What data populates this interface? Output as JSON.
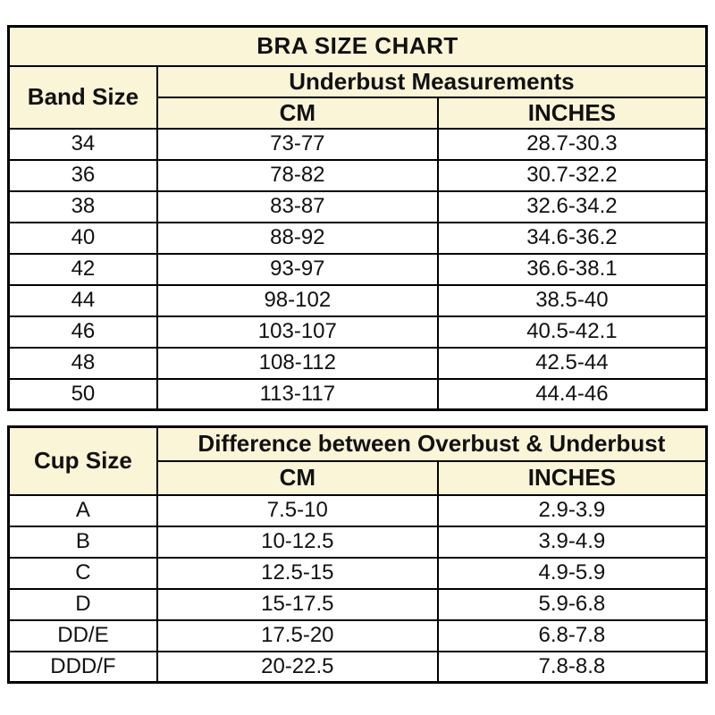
{
  "colors": {
    "page_bg": "#ffffff",
    "header_bg": "#FAF5D7",
    "border": "#000000",
    "text": "#111111"
  },
  "chart_data": [
    {
      "type": "table",
      "title": "BRA SIZE CHART",
      "row_header": "Band Size",
      "group_header": "Underbust Measurements",
      "subcolumns": [
        "CM",
        "INCHES"
      ],
      "rows": [
        [
          "34",
          "73-77",
          "28.7-30.3"
        ],
        [
          "36",
          "78-82",
          "30.7-32.2"
        ],
        [
          "38",
          "83-87",
          "32.6-34.2"
        ],
        [
          "40",
          "88-92",
          "34.6-36.2"
        ],
        [
          "42",
          "93-97",
          "36.6-38.1"
        ],
        [
          "44",
          "98-102",
          "38.5-40"
        ],
        [
          "46",
          "103-107",
          "40.5-42.1"
        ],
        [
          "48",
          "108-112",
          "42.5-44"
        ],
        [
          "50",
          "113-117",
          "44.4-46"
        ]
      ]
    },
    {
      "type": "table",
      "row_header": "Cup Size",
      "group_header": "Difference between Overbust & Underbust",
      "subcolumns": [
        "CM",
        "INCHES"
      ],
      "rows": [
        [
          "A",
          "7.5-10",
          "2.9-3.9"
        ],
        [
          "B",
          "10-12.5",
          "3.9-4.9"
        ],
        [
          "C",
          "12.5-15",
          "4.9-5.9"
        ],
        [
          "D",
          "15-17.5",
          "5.9-6.8"
        ],
        [
          "DD/E",
          "17.5-20",
          "6.8-7.8"
        ],
        [
          "DDD/F",
          "20-22.5",
          "7.8-8.8"
        ]
      ]
    }
  ]
}
